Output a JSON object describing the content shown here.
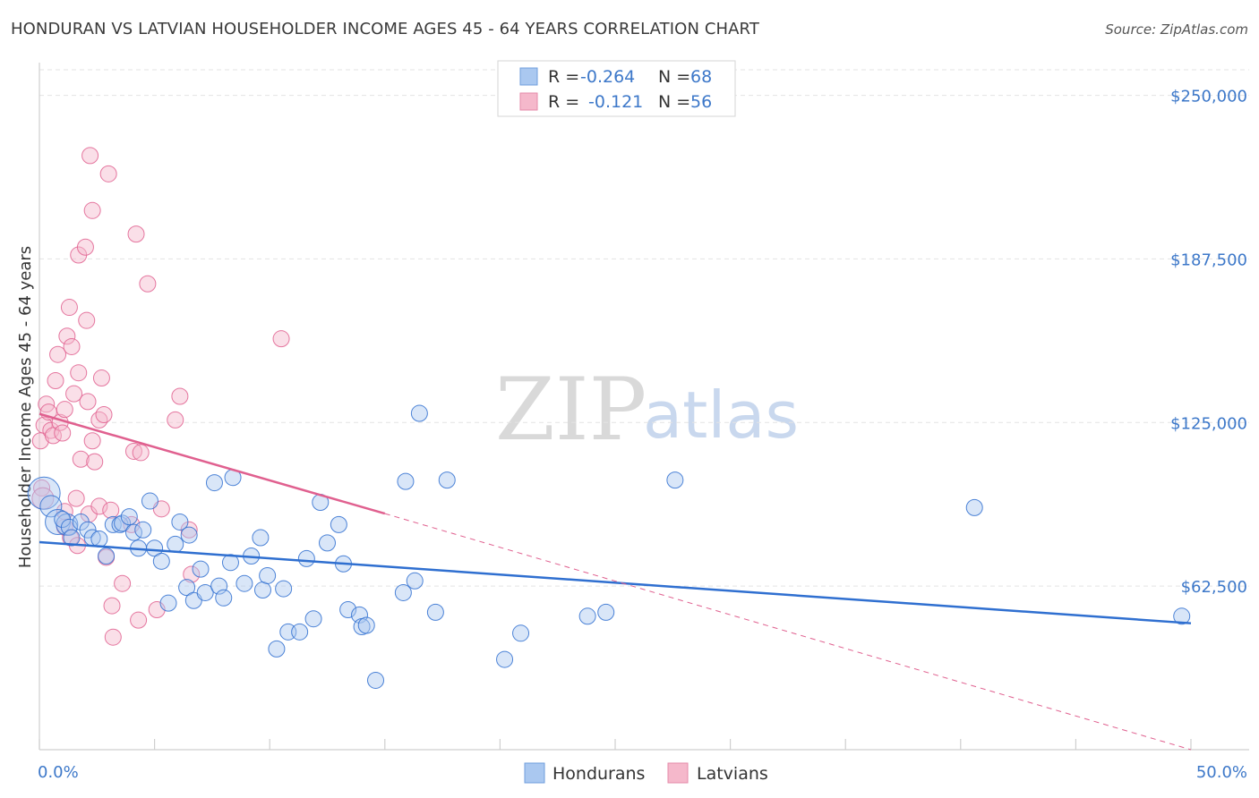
{
  "title": "HONDURAN VS LATVIAN HOUSEHOLDER INCOME AGES 45 - 64 YEARS CORRELATION CHART",
  "source": "Source: ZipAtlas.com",
  "watermark": {
    "part1": "ZIP",
    "part2": "atlas"
  },
  "colors": {
    "blue": "#2f6fd0",
    "blue_fill": "#aac8f0",
    "pink": "#e0608f",
    "pink_fill": "#f5b8cb",
    "tick_text": "#3d78c9",
    "grid": "#e3e3e3"
  },
  "legend": {
    "rows": [
      {
        "r_label": "R =",
        "r_value": "-0.264",
        "n_label": "N =",
        "n_value": "68"
      },
      {
        "r_label": "R =",
        "r_value": "-0.121",
        "n_label": "N =",
        "n_value": "56"
      }
    ]
  },
  "bottom_legend": {
    "blue": "Hondurans",
    "pink": "Latvians"
  },
  "chart_data": {
    "type": "scatter",
    "title": "HONDURAN VS LATVIAN HOUSEHOLDER INCOME AGES 45 - 64 YEARS CORRELATION CHART",
    "ylabel": "Householder Income Ages 45 - 64 years",
    "xlim": [
      0,
      50
    ],
    "ylim": [
      0,
      262500
    ],
    "x_tick_labels": [
      "0.0%",
      "50.0%"
    ],
    "y_ticks": [
      62500,
      125000,
      187500,
      250000
    ],
    "y_tick_labels": [
      "$62,500",
      "$125,000",
      "$187,500",
      "$250,000"
    ],
    "grid": "horizontal dashed",
    "legend_position": "top-center",
    "series": [
      {
        "name": "Hondurans",
        "color": "#2f6fd0",
        "r": -0.264,
        "n": 68,
        "trend": {
          "x": [
            0,
            50
          ],
          "y": [
            79300,
            48300
          ]
        },
        "points": [
          [
            0.2,
            98000,
            18
          ],
          [
            0.5,
            93000,
            12
          ],
          [
            0.8,
            87000,
            14
          ],
          [
            1.2,
            86000,
            12
          ],
          [
            1.0,
            88000,
            9
          ],
          [
            1.3,
            85000,
            9
          ],
          [
            1.4,
            81000,
            9
          ],
          [
            1.8,
            87000,
            9
          ],
          [
            2.1,
            84000,
            9
          ],
          [
            2.3,
            81000,
            9
          ],
          [
            2.6,
            80500,
            9
          ],
          [
            2.9,
            74000,
            9
          ],
          [
            3.2,
            86000,
            9
          ],
          [
            3.5,
            86000,
            9
          ],
          [
            3.6,
            86500,
            9
          ],
          [
            3.9,
            89000,
            9
          ],
          [
            4.1,
            83000,
            9
          ],
          [
            4.3,
            77000,
            9
          ],
          [
            4.5,
            84000,
            9
          ],
          [
            4.8,
            95000,
            9
          ],
          [
            5.0,
            77000,
            9
          ],
          [
            5.3,
            72000,
            9
          ],
          [
            5.6,
            56000,
            9
          ],
          [
            5.9,
            78500,
            9
          ],
          [
            6.1,
            87000,
            9
          ],
          [
            6.4,
            62000,
            9
          ],
          [
            6.5,
            82000,
            9
          ],
          [
            6.7,
            57000,
            9
          ],
          [
            7.0,
            69000,
            9
          ],
          [
            7.2,
            60000,
            9
          ],
          [
            7.6,
            102000,
            9
          ],
          [
            7.8,
            62500,
            9
          ],
          [
            8.0,
            58000,
            9
          ],
          [
            8.3,
            71500,
            9
          ],
          [
            8.4,
            104000,
            9
          ],
          [
            8.9,
            63500,
            9
          ],
          [
            9.2,
            74000,
            9
          ],
          [
            9.6,
            81000,
            9
          ],
          [
            9.7,
            61000,
            9
          ],
          [
            9.9,
            66500,
            9
          ],
          [
            10.3,
            38500,
            9
          ],
          [
            10.6,
            61500,
            9
          ],
          [
            10.8,
            45000,
            9
          ],
          [
            11.3,
            45000,
            9
          ],
          [
            11.6,
            73000,
            9
          ],
          [
            11.9,
            50000,
            9
          ],
          [
            12.2,
            94500,
            9
          ],
          [
            12.5,
            79000,
            9
          ],
          [
            13.0,
            86000,
            9
          ],
          [
            13.2,
            71000,
            9
          ],
          [
            13.4,
            53500,
            9
          ],
          [
            13.9,
            51500,
            9
          ],
          [
            14.0,
            47000,
            9
          ],
          [
            14.2,
            47500,
            9
          ],
          [
            14.6,
            26500,
            9
          ],
          [
            15.8,
            60000,
            9
          ],
          [
            15.9,
            102500,
            9
          ],
          [
            16.3,
            64500,
            9
          ],
          [
            16.5,
            128500,
            9
          ],
          [
            17.2,
            52500,
            9
          ],
          [
            17.7,
            103000,
            9
          ],
          [
            20.2,
            34500,
            9
          ],
          [
            20.9,
            44500,
            9
          ],
          [
            23.8,
            51000,
            9
          ],
          [
            24.6,
            52500,
            9
          ],
          [
            27.6,
            103000,
            9
          ],
          [
            40.6,
            92500,
            9
          ],
          [
            49.6,
            51000,
            9
          ]
        ]
      },
      {
        "name": "Latvians",
        "color": "#e0608f",
        "r": -0.121,
        "n": 56,
        "trend": {
          "x": [
            0,
            15
          ],
          "y": [
            128300,
            90200
          ]
        },
        "trend_dashed": {
          "x": [
            15,
            50
          ],
          "y": [
            90200,
            0
          ]
        },
        "points": [
          [
            0.05,
            118000,
            9
          ],
          [
            0.1,
            100000,
            9
          ],
          [
            0.2,
            124000,
            9
          ],
          [
            0.3,
            132000,
            9
          ],
          [
            0.4,
            129000,
            9
          ],
          [
            0.5,
            122000,
            9
          ],
          [
            0.6,
            120000,
            9
          ],
          [
            0.7,
            141000,
            9
          ],
          [
            0.8,
            151000,
            9
          ],
          [
            0.9,
            125000,
            9
          ],
          [
            1.0,
            121000,
            9
          ],
          [
            1.1,
            91000,
            9
          ],
          [
            1.1,
            85000,
            9
          ],
          [
            1.1,
            130000,
            9
          ],
          [
            1.2,
            158000,
            9
          ],
          [
            1.3,
            169000,
            9
          ],
          [
            1.35,
            81000,
            9
          ],
          [
            1.4,
            154000,
            9
          ],
          [
            1.5,
            136000,
            9
          ],
          [
            1.6,
            96000,
            9
          ],
          [
            1.65,
            78000,
            9
          ],
          [
            1.7,
            189000,
            9
          ],
          [
            1.7,
            144000,
            9
          ],
          [
            1.8,
            111000,
            9
          ],
          [
            2.0,
            192000,
            9
          ],
          [
            2.05,
            164000,
            9
          ],
          [
            2.1,
            133000,
            9
          ],
          [
            2.15,
            90000,
            9
          ],
          [
            2.2,
            227000,
            9
          ],
          [
            2.3,
            206000,
            9
          ],
          [
            2.3,
            118000,
            9
          ],
          [
            2.4,
            110000,
            9
          ],
          [
            2.6,
            126000,
            9
          ],
          [
            2.6,
            93000,
            9
          ],
          [
            2.7,
            142000,
            9
          ],
          [
            2.8,
            128000,
            9
          ],
          [
            2.9,
            73500,
            9
          ],
          [
            3.0,
            220000,
            9
          ],
          [
            3.1,
            91500,
            9
          ],
          [
            3.15,
            55000,
            9
          ],
          [
            3.2,
            43000,
            9
          ],
          [
            3.6,
            63500,
            9
          ],
          [
            4.0,
            86000,
            9
          ],
          [
            4.1,
            114000,
            9
          ],
          [
            4.2,
            197000,
            9
          ],
          [
            4.3,
            49500,
            9
          ],
          [
            4.4,
            113500,
            9
          ],
          [
            4.7,
            178000,
            9
          ],
          [
            5.1,
            53500,
            9
          ],
          [
            5.3,
            92000,
            9
          ],
          [
            5.9,
            126000,
            9
          ],
          [
            6.1,
            135000,
            9
          ],
          [
            6.5,
            84000,
            9
          ],
          [
            6.6,
            67000,
            9
          ],
          [
            10.5,
            157000,
            9
          ],
          [
            0.15,
            96000,
            12
          ]
        ]
      }
    ]
  }
}
